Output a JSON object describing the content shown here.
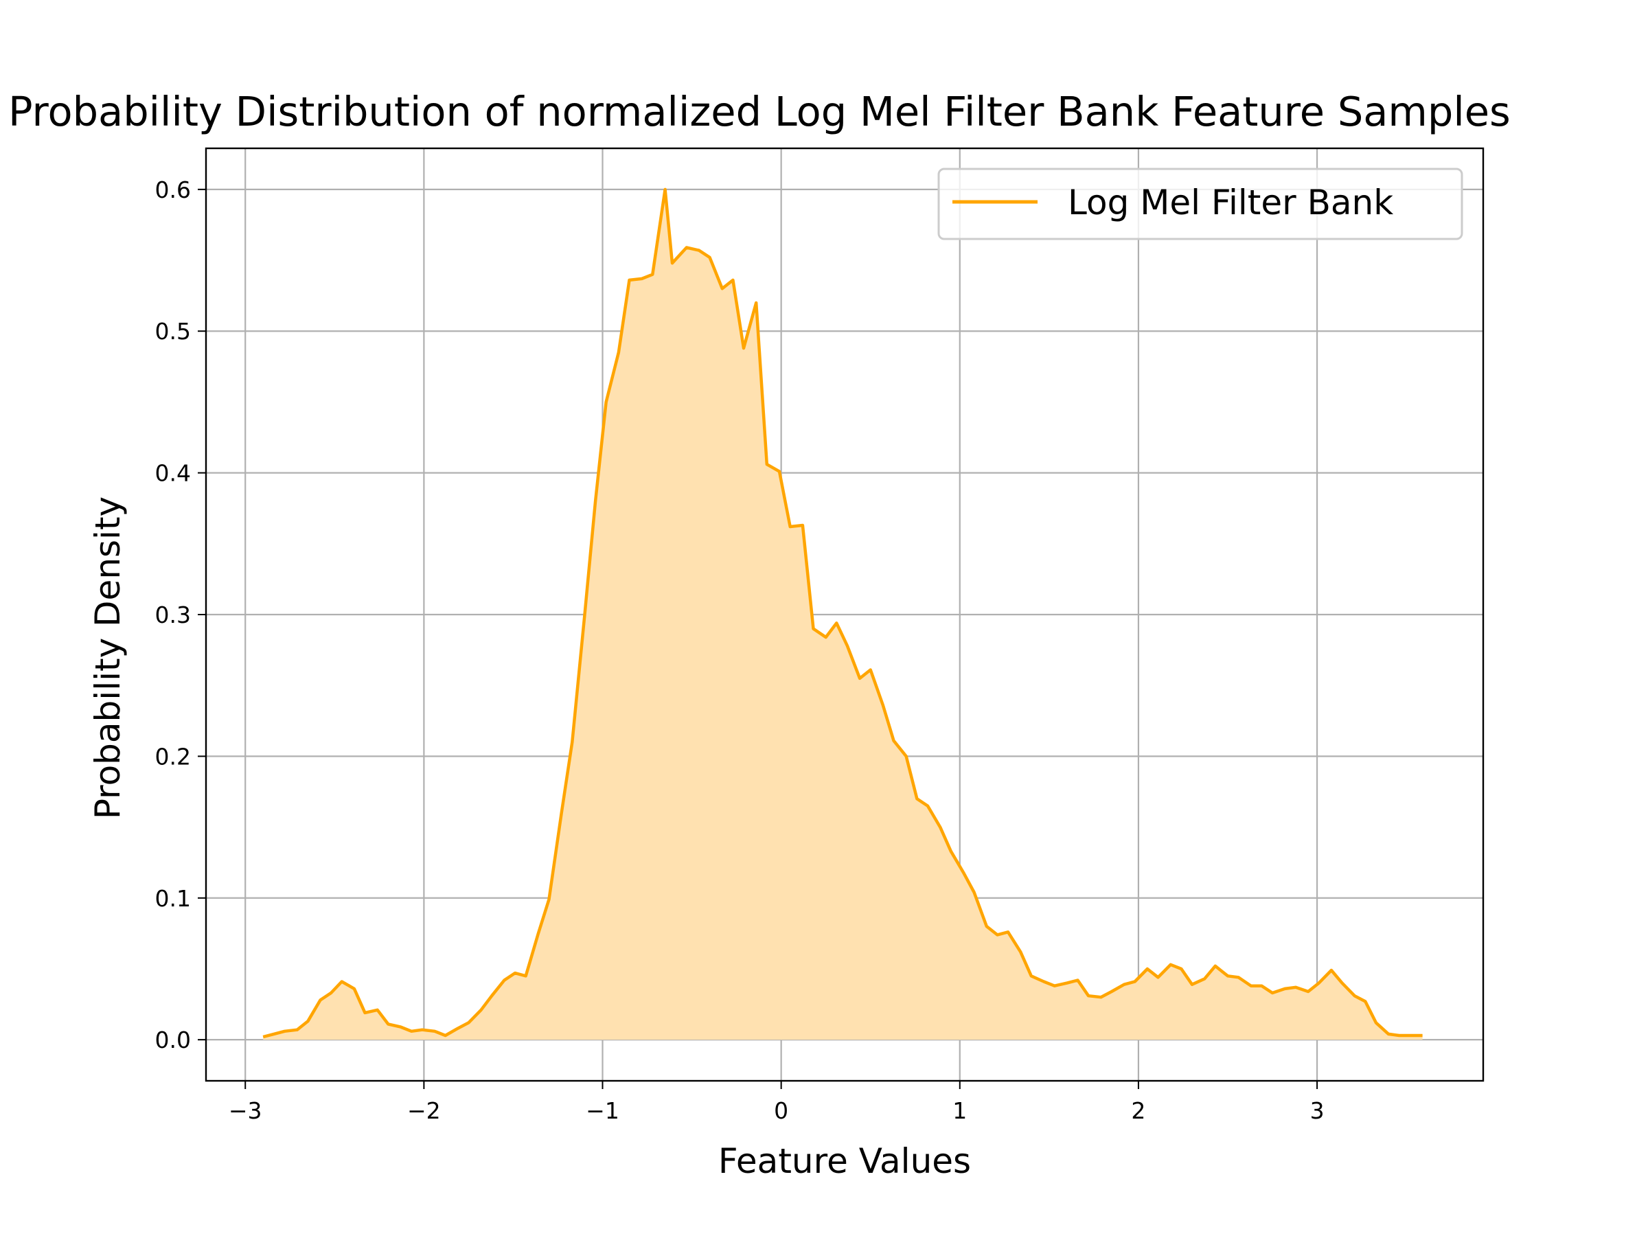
{
  "chart_data": {
    "type": "area",
    "title": "Probability Distribution of normalized Log Mel Filter Bank Feature Samples",
    "xlabel": "Feature Values",
    "ylabel": "Probability Density",
    "xlim": [
      -3.22,
      3.93
    ],
    "ylim": [
      -0.029,
      0.629
    ],
    "xticks": [
      -3,
      -2,
      -1,
      0,
      1,
      2,
      3
    ],
    "xtick_labels": [
      "−3",
      "−2",
      "−1",
      "0",
      "1",
      "2",
      "3"
    ],
    "yticks": [
      0.0,
      0.1,
      0.2,
      0.3,
      0.4,
      0.5,
      0.6
    ],
    "ytick_labels": [
      "0.0",
      "0.1",
      "0.2",
      "0.3",
      "0.4",
      "0.5",
      "0.6"
    ],
    "grid": true,
    "legend_position": "top-right",
    "colors": {
      "line": "#FFA500",
      "fill": "#FFE1B0",
      "grid": "#b0b0b0"
    },
    "series": [
      {
        "name": "Log Mel Filter Bank",
        "x": [
          -2.9,
          -2.84,
          -2.78,
          -2.71,
          -2.65,
          -2.58,
          -2.52,
          -2.46,
          -2.39,
          -2.33,
          -2.26,
          -2.2,
          -2.13,
          -2.07,
          -2.01,
          -1.94,
          -1.88,
          -1.81,
          -1.75,
          -1.68,
          -1.62,
          -1.55,
          -1.49,
          -1.43,
          -1.36,
          -1.3,
          -1.23,
          -1.17,
          -1.1,
          -1.04,
          -0.98,
          -0.91,
          -0.85,
          -0.78,
          -0.72,
          -0.65,
          -0.61,
          -0.53,
          -0.46,
          -0.4,
          -0.33,
          -0.27,
          -0.21,
          -0.14,
          -0.08,
          -0.01,
          0.05,
          0.12,
          0.18,
          0.25,
          0.31,
          0.37,
          0.44,
          0.5,
          0.57,
          0.63,
          0.7,
          0.76,
          0.82,
          0.89,
          0.95,
          1.02,
          1.08,
          1.15,
          1.21,
          1.27,
          1.34,
          1.4,
          1.47,
          1.53,
          1.6,
          1.66,
          1.72,
          1.79,
          1.85,
          1.92,
          1.98,
          2.05,
          2.11,
          2.18,
          2.24,
          2.3,
          2.37,
          2.43,
          2.5,
          2.56,
          2.63,
          2.69,
          2.75,
          2.82,
          2.88,
          2.95,
          3.01,
          3.08,
          3.14,
          3.21,
          3.27,
          3.33,
          3.4,
          3.46,
          3.53,
          3.59
        ],
        "y": [
          0.002,
          0.004,
          0.006,
          0.007,
          0.013,
          0.028,
          0.033,
          0.041,
          0.036,
          0.019,
          0.021,
          0.011,
          0.009,
          0.006,
          0.007,
          0.006,
          0.003,
          0.008,
          0.012,
          0.021,
          0.031,
          0.042,
          0.047,
          0.045,
          0.075,
          0.099,
          0.16,
          0.21,
          0.3,
          0.38,
          0.45,
          0.485,
          0.536,
          0.537,
          0.54,
          0.6,
          0.548,
          0.559,
          0.557,
          0.552,
          0.53,
          0.536,
          0.488,
          0.52,
          0.406,
          0.401,
          0.362,
          0.363,
          0.29,
          0.284,
          0.294,
          0.278,
          0.255,
          0.261,
          0.236,
          0.211,
          0.2,
          0.17,
          0.165,
          0.15,
          0.133,
          0.118,
          0.104,
          0.08,
          0.074,
          0.076,
          0.062,
          0.045,
          0.041,
          0.038,
          0.04,
          0.042,
          0.031,
          0.03,
          0.034,
          0.039,
          0.041,
          0.05,
          0.044,
          0.053,
          0.05,
          0.039,
          0.043,
          0.052,
          0.045,
          0.044,
          0.038,
          0.038,
          0.033,
          0.036,
          0.037,
          0.034,
          0.04,
          0.049,
          0.04,
          0.031,
          0.027,
          0.012,
          0.004,
          0.003,
          0.003,
          0.003
        ]
      }
    ]
  }
}
